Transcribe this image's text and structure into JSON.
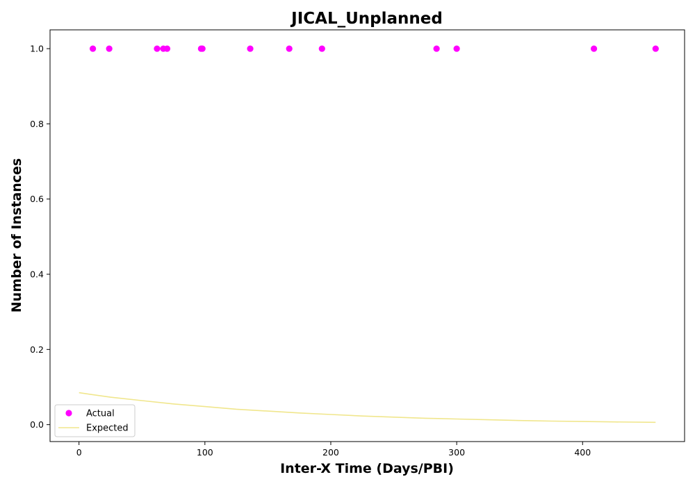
{
  "chart_data": {
    "type": "scatter",
    "title": "JICAL_Unplanned",
    "xlabel": "Inter-X Time (Days/PBI)",
    "ylabel": "Number of Instances",
    "xlim": [
      -23,
      481
    ],
    "ylim": [
      -0.045,
      1.05
    ],
    "xticks": [
      0,
      100,
      200,
      300,
      400
    ],
    "yticks": [
      0.0,
      0.2,
      0.4,
      0.6,
      0.8,
      1.0
    ],
    "grid": false,
    "legend_position": "lower-left",
    "series": [
      {
        "name": "Actual",
        "kind": "scatter",
        "color": "#ff00ff",
        "x": [
          11,
          24,
          62,
          67,
          70,
          97,
          98,
          136,
          167,
          193,
          284,
          300,
          409,
          458
        ],
        "y": [
          1,
          1,
          1,
          1,
          1,
          1,
          1,
          1,
          1,
          1,
          1,
          1,
          1,
          1
        ]
      },
      {
        "name": "Expected",
        "kind": "line",
        "color": "#f0e68c",
        "x": [
          0,
          25,
          50,
          75,
          100,
          125,
          150,
          175,
          200,
          225,
          250,
          275,
          300,
          325,
          350,
          375,
          400,
          425,
          458
        ],
        "y": [
          0.085,
          0.073,
          0.064,
          0.055,
          0.048,
          0.041,
          0.036,
          0.031,
          0.027,
          0.023,
          0.02,
          0.017,
          0.015,
          0.013,
          0.011,
          0.0095,
          0.0083,
          0.0072,
          0.0062
        ]
      }
    ]
  }
}
